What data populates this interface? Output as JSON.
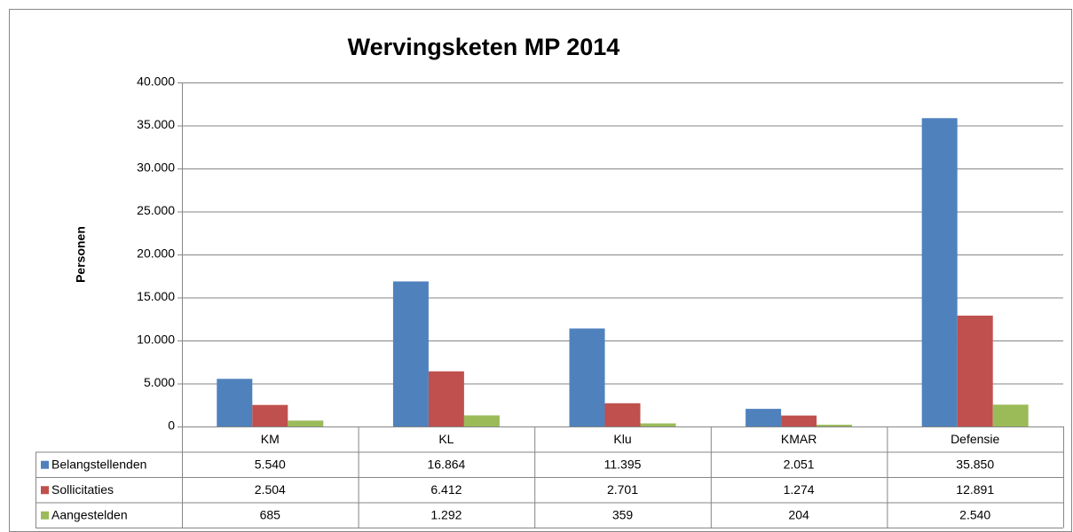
{
  "chart_data": {
    "type": "bar",
    "title": "Wervingsketen MP 2014",
    "y_label": "Personen",
    "categories": [
      "KM",
      "KL",
      "Klu",
      "KMAR",
      "Defensie"
    ],
    "series": [
      {
        "name": "Belangstellenden",
        "color": "#4f81bd",
        "values": [
          5540,
          16864,
          11395,
          2051,
          35850
        ],
        "value_labels": [
          "5.540",
          "16.864",
          "11.395",
          "2.051",
          "35.850"
        ]
      },
      {
        "name": "Sollicitaties",
        "color": "#c0504d",
        "values": [
          2504,
          6412,
          2701,
          1274,
          12891
        ],
        "value_labels": [
          "2.504",
          "6.412",
          "2.701",
          "1.274",
          "12.891"
        ]
      },
      {
        "name": "Aangestelden",
        "color": "#9bbb59",
        "values": [
          685,
          1292,
          359,
          204,
          2540
        ],
        "value_labels": [
          "685",
          "1.292",
          "359",
          "204",
          "2.540"
        ]
      }
    ],
    "ylim": [
      0,
      40000
    ],
    "yticks": [
      0,
      {
        "value": 5000,
        "label": "5.000"
      },
      {
        "value": 10000,
        "label": "10.000"
      },
      {
        "value": 15000,
        "label": "15.000"
      },
      {
        "value": 20000,
        "label": "20.000"
      },
      {
        "value": 25000,
        "label": "25.000"
      },
      {
        "value": 30000,
        "label": "30.000"
      },
      {
        "value": 35000,
        "label": "35.000"
      },
      {
        "value": 40000,
        "label": "40.000"
      }
    ],
    "grid": true
  }
}
